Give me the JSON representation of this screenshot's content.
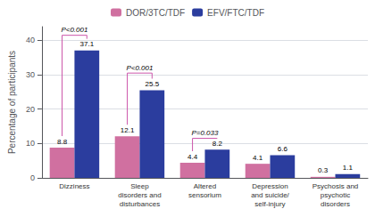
{
  "chart_data": {
    "type": "bar",
    "categories": [
      "Dizziness",
      "Sleep\ndisorders and\ndisturbances",
      "Altered\nsensorium",
      "Depression\nand suicide/\nself-injury",
      "Psychosis and\npsychotic\ndisorders"
    ],
    "series": [
      {
        "name": "DOR/3TC/TDF",
        "color": "#d070a0",
        "values": [
          8.8,
          12.1,
          4.4,
          4.1,
          0.3
        ]
      },
      {
        "name": "EFV/FTC/TDF",
        "color": "#2b3d9e",
        "values": [
          37.1,
          25.5,
          8.2,
          6.6,
          1.1
        ]
      }
    ],
    "ylabel": "Percentage of participants",
    "ylim": [
      0,
      44
    ],
    "yticks": [
      0,
      10,
      20,
      30,
      40
    ],
    "grid": true,
    "legend": "upper center",
    "data_labels": true,
    "annotations": [
      {
        "category": "Dizziness",
        "text": "P<0.001",
        "y": 41.5,
        "color": "#cc55aa"
      },
      {
        "category": "Sleep\ndisorders and\ndisturbances",
        "text": "P<0.001",
        "y": 30.5,
        "color": "#cc55aa"
      },
      {
        "category": "Altered\nsensorium",
        "text": "P=0.033",
        "y": 11.5,
        "color": "#cc55aa"
      }
    ]
  }
}
